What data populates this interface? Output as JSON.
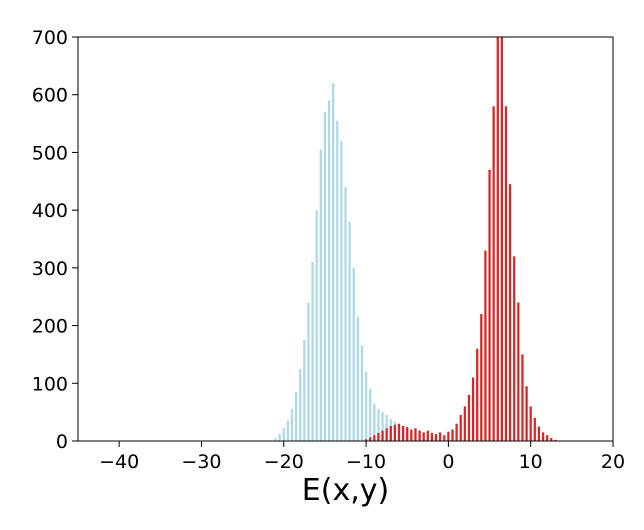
{
  "chart_data": {
    "type": "bar",
    "title": "",
    "xlabel": "E(x,y)",
    "ylabel": "",
    "xlim": [
      -45,
      20
    ],
    "ylim": [
      0,
      700
    ],
    "xticks": [
      -40,
      -30,
      -20,
      -10,
      0,
      10,
      20
    ],
    "yticks": [
      0,
      100,
      200,
      300,
      400,
      500,
      600,
      700
    ],
    "xtick_labels": [
      "−40",
      "−30",
      "−20",
      "−10",
      "0",
      "10",
      "20"
    ],
    "ytick_labels": [
      "0",
      "100",
      "200",
      "300",
      "400",
      "500",
      "600",
      "700"
    ],
    "grid": false,
    "bin_width": 0.5,
    "series": [
      {
        "color": "#add8e6",
        "x": [
          -21.0,
          -20.5,
          -20.0,
          -19.5,
          -19.0,
          -18.5,
          -18.0,
          -17.5,
          -17.0,
          -16.5,
          -16.0,
          -15.5,
          -15.0,
          -14.5,
          -14.0,
          -13.5,
          -13.0,
          -12.5,
          -12.0,
          -11.5,
          -11.0,
          -10.5,
          -10.0,
          -9.5,
          -9.0,
          -8.5,
          -8.0,
          -7.5,
          -7.0,
          -6.5,
          -6.0,
          -5.5,
          -5.0,
          -4.5,
          -4.0,
          -3.5,
          -3.0,
          -2.5,
          -2.0,
          -1.5,
          -1.0,
          -0.5,
          0.0
        ],
        "values": [
          5,
          12,
          22,
          35,
          55,
          85,
          125,
          175,
          240,
          310,
          400,
          505,
          570,
          590,
          620,
          555,
          520,
          440,
          380,
          300,
          215,
          165,
          120,
          90,
          65,
          55,
          50,
          45,
          38,
          33,
          28,
          25,
          22,
          18,
          15,
          12,
          10,
          8,
          6,
          4,
          3,
          2,
          1
        ]
      },
      {
        "color": "#d62728",
        "x": [
          -10.0,
          -9.5,
          -9.0,
          -8.5,
          -8.0,
          -7.5,
          -7.0,
          -6.5,
          -6.0,
          -5.5,
          -5.0,
          -4.5,
          -4.0,
          -3.5,
          -3.0,
          -2.5,
          -2.0,
          -1.5,
          -1.0,
          -0.5,
          0.0,
          0.5,
          1.0,
          1.5,
          2.0,
          2.5,
          3.0,
          3.5,
          4.0,
          4.5,
          5.0,
          5.5,
          6.0,
          6.5,
          7.0,
          7.5,
          8.0,
          8.5,
          9.0,
          9.5,
          10.0,
          10.5,
          11.0,
          11.5,
          12.0,
          12.5,
          13.0
        ],
        "values": [
          3,
          6,
          10,
          14,
          18,
          22,
          26,
          28,
          30,
          26,
          24,
          20,
          22,
          18,
          15,
          18,
          14,
          12,
          15,
          10,
          16,
          20,
          30,
          45,
          60,
          80,
          110,
          160,
          220,
          330,
          470,
          580,
          700,
          700,
          580,
          445,
          320,
          240,
          150,
          95,
          60,
          40,
          25,
          15,
          10,
          5,
          2
        ]
      }
    ]
  }
}
